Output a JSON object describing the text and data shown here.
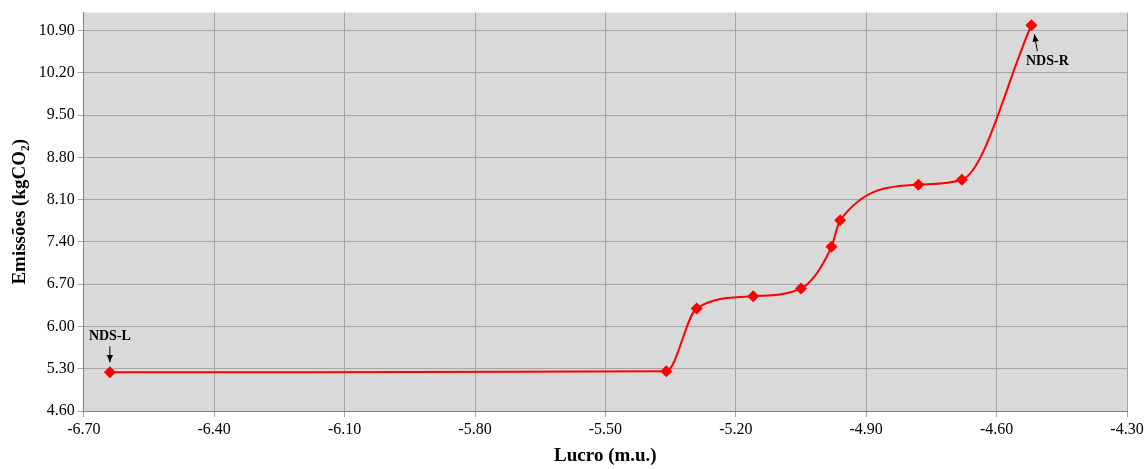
{
  "chart_data": {
    "type": "line",
    "xlabel": "Lucro (m.u.)",
    "ylabel": "Emissões (kgCO₂)",
    "x": [
      -6.64,
      -5.36,
      -5.29,
      -5.16,
      -5.05,
      -4.98,
      -4.96,
      -4.78,
      -4.68,
      -4.52
    ],
    "series": [
      {
        "color": "#ff0000",
        "values": [
          5.24,
          5.26,
          6.3,
          6.5,
          6.63,
          7.32,
          7.76,
          8.35,
          8.43,
          10.99
        ]
      }
    ],
    "xlim": [
      -6.7,
      -4.3
    ],
    "xticks": [
      {
        "value": -6.7,
        "label": "-6.70"
      },
      {
        "value": -6.4,
        "label": "-6.40"
      },
      {
        "value": -6.1,
        "label": "-6.10"
      },
      {
        "value": -5.8,
        "label": "-5.80"
      },
      {
        "value": -5.5,
        "label": "-5.50"
      },
      {
        "value": -5.2,
        "label": "-5.20"
      },
      {
        "value": -4.9,
        "label": "-4.90"
      },
      {
        "value": -4.6,
        "label": "-4.60"
      },
      {
        "value": -4.3,
        "label": "-4.30"
      }
    ],
    "ylim": [
      4.6,
      11.2
    ],
    "yticks": [
      {
        "value": 4.6,
        "label": "4.60"
      },
      {
        "value": 5.3,
        "label": "5.30"
      },
      {
        "value": 6.0,
        "label": "6.00"
      },
      {
        "value": 6.7,
        "label": "6.70"
      },
      {
        "value": 7.4,
        "label": "7.40"
      },
      {
        "value": 8.1,
        "label": "8.10"
      },
      {
        "value": 8.8,
        "label": "8.80"
      },
      {
        "value": 9.5,
        "label": "9.50"
      },
      {
        "value": 10.2,
        "label": "10.20"
      },
      {
        "value": 10.9,
        "label": "10.90"
      }
    ],
    "annotations": [
      {
        "text": "NDS-L",
        "x": -6.64,
        "y": 5.24
      },
      {
        "text": "NDS-R",
        "x": -4.52,
        "y": 10.99
      }
    ],
    "grid": true,
    "legend": false,
    "marker": "diamond",
    "line_style": "solid"
  }
}
